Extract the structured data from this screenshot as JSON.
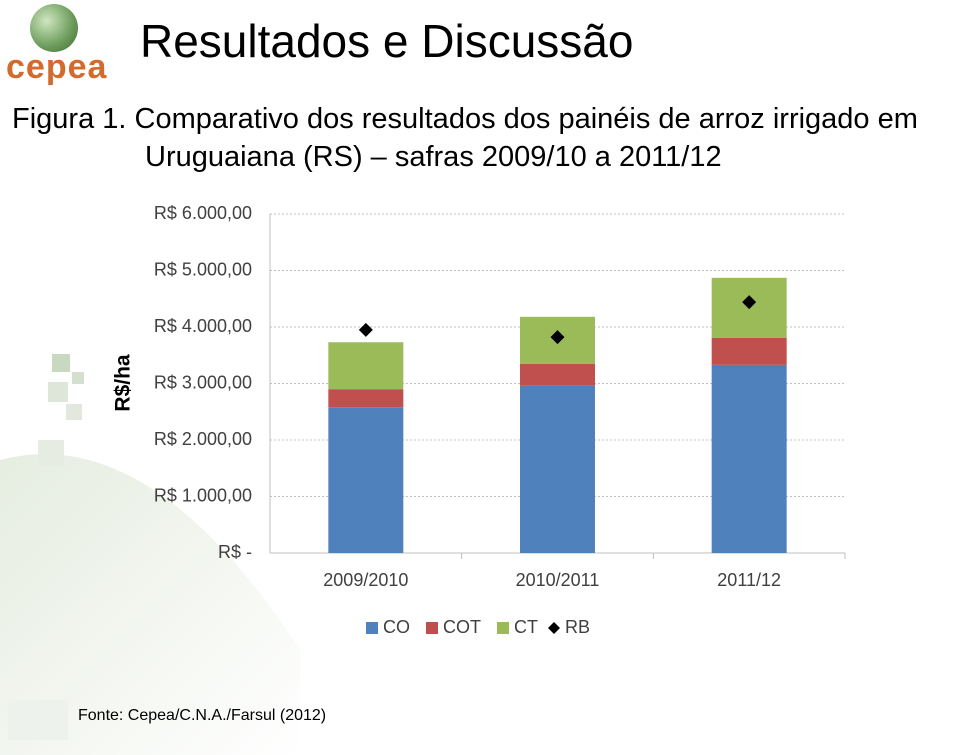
{
  "header": {
    "logo": "cepea",
    "title": "Resultados e Discussão"
  },
  "caption": "Figura 1. Comparativo dos resultados dos painéis de arroz irrigado em Uruguaiana (RS) – safras 2009/10 a 2011/12",
  "chart_data": {
    "type": "bar",
    "stacked": true,
    "y_label": "R$/ha",
    "categories": [
      "2009/2010",
      "2010/2011",
      "2011/12"
    ],
    "series": [
      {
        "name": "CO",
        "color": "#4f81bd",
        "values": [
          2580,
          2960,
          3330
        ]
      },
      {
        "name": "COT",
        "color": "#c0504d",
        "values": [
          320,
          390,
          480
        ]
      },
      {
        "name": "CT",
        "color": "#9bbb59",
        "values": [
          830,
          830,
          1060
        ]
      },
      {
        "name": "RB",
        "type": "scatter",
        "color": "#000000",
        "values": [
          3950,
          3820,
          4440
        ]
      }
    ],
    "ylim": [
      0,
      6000
    ],
    "yticks": [
      {
        "value": 0,
        "label": "R$ -"
      },
      {
        "value": 1000,
        "label": "R$ 1.000,00"
      },
      {
        "value": 2000,
        "label": "R$ 2.000,00"
      },
      {
        "value": 3000,
        "label": "R$ 3.000,00"
      },
      {
        "value": 4000,
        "label": "R$ 4.000,00"
      },
      {
        "value": 5000,
        "label": "R$ 5.000,00"
      },
      {
        "value": 6000,
        "label": "R$ 6.000,00"
      }
    ],
    "grid": true,
    "legend": "bottom"
  },
  "source": "Fonte: Cepea/C.N.A./Farsul (2012)"
}
